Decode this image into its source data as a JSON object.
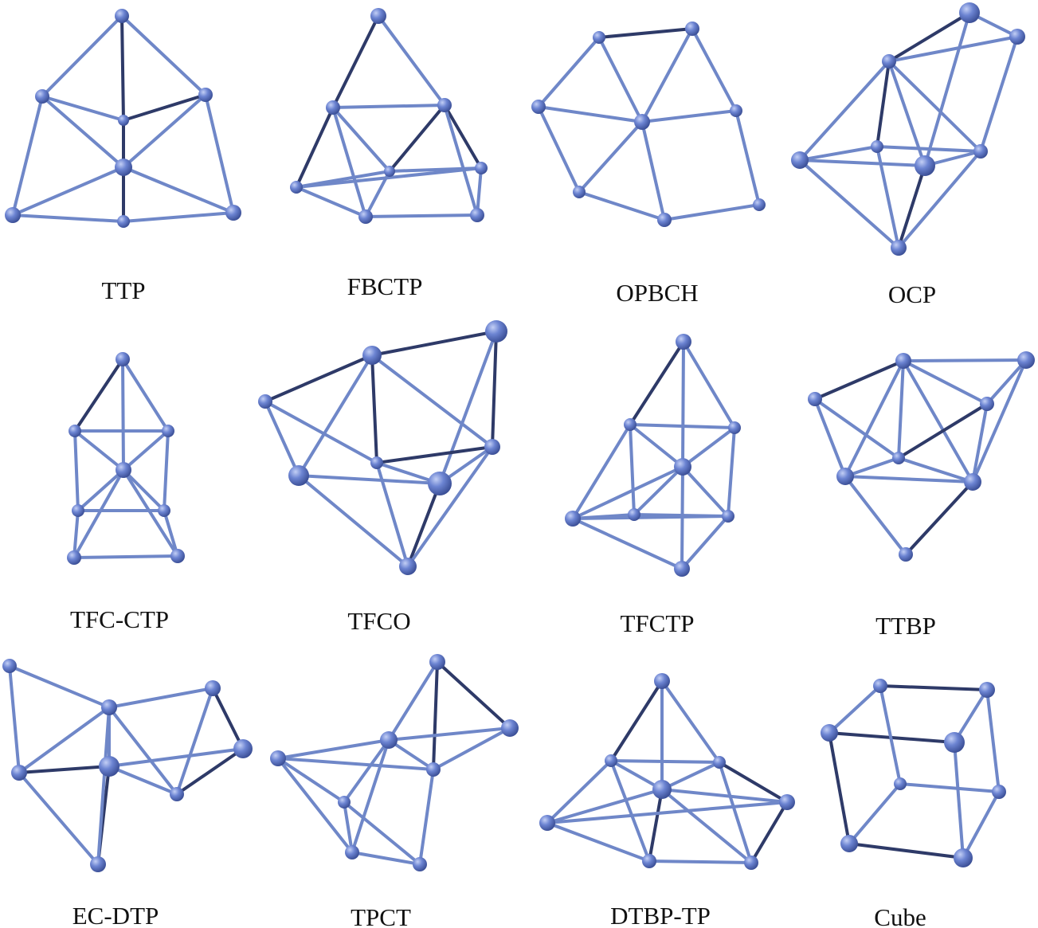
{
  "figure": {
    "colors": {
      "node": "#6c84d2",
      "node_highlight": "#c3cff5",
      "node_shadow": "#3b4f96",
      "edge_light": "#6f87c8",
      "edge_dark": "#2e3a68"
    },
    "polyhedra": [
      {
        "id": "ttp",
        "label": "TTP"
      },
      {
        "id": "fbctp",
        "label": "FBCTP"
      },
      {
        "id": "opbch",
        "label": "OPBCH"
      },
      {
        "id": "ocp",
        "label": "OCP"
      },
      {
        "id": "tfc-ctp",
        "label": "TFC-CTP"
      },
      {
        "id": "tfco",
        "label": "TFCO"
      },
      {
        "id": "tfctp",
        "label": "TFCTP"
      },
      {
        "id": "ttbp",
        "label": "TTBP"
      },
      {
        "id": "ec-dtp",
        "label": "EC-DTP"
      },
      {
        "id": "tpct",
        "label": "TPCT"
      },
      {
        "id": "dtbp-tp",
        "label": "DTBP-TP"
      },
      {
        "id": "cube",
        "label": "Cube"
      }
    ]
  }
}
